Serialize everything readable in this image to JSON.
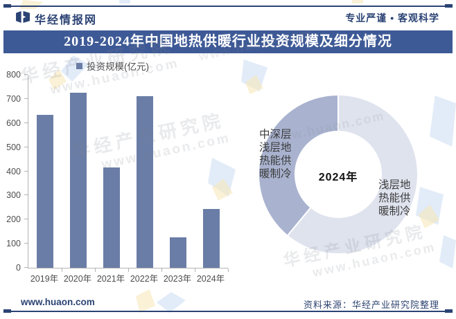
{
  "colors": {
    "accent_navy": "#2b4374",
    "title_bar_bg": "#3e5a96",
    "bar_fill": "#6a7da6",
    "axis_line": "#b3b3b3",
    "slice_light": "#dfe3ee",
    "slice_dark": "#a9b3cf"
  },
  "header": {
    "brand": "华经情报网",
    "slogan": "专业严谨 • 客观科学"
  },
  "title_bar": {
    "text": "2019-2024年中国地热供暖行业投资规模及细分情况"
  },
  "footer": {
    "site": "www.huaon.com",
    "source": "资料来源：华经产业研究院整理"
  },
  "watermarks": {
    "org": "华经产业研究院",
    "url": "www.huaon.com"
  },
  "chart_data": [
    {
      "type": "bar",
      "legend_label": "投资规模(亿元)",
      "categories": [
        "2019年",
        "2020年",
        "2021年",
        "2022年",
        "2023年",
        "2024年"
      ],
      "values": [
        635,
        725,
        415,
        710,
        125,
        245
      ],
      "ylim": [
        0,
        800
      ],
      "ytick_step": 100,
      "grid": false,
      "legend_position": "top-left",
      "bar_color": "#6a7da6"
    },
    {
      "type": "pie",
      "subtype": "donut",
      "center_label": "2024年",
      "start_angle_deg": 0,
      "direction": "clockwise",
      "unit": "%",
      "slices": [
        {
          "label": "浅层地热能供暖制冷",
          "value": 61,
          "color": "#dfe3ee"
        },
        {
          "label": "中深层浅层地热能供暖制冷",
          "value": 39,
          "color": "#a9b3cf"
        }
      ]
    }
  ]
}
